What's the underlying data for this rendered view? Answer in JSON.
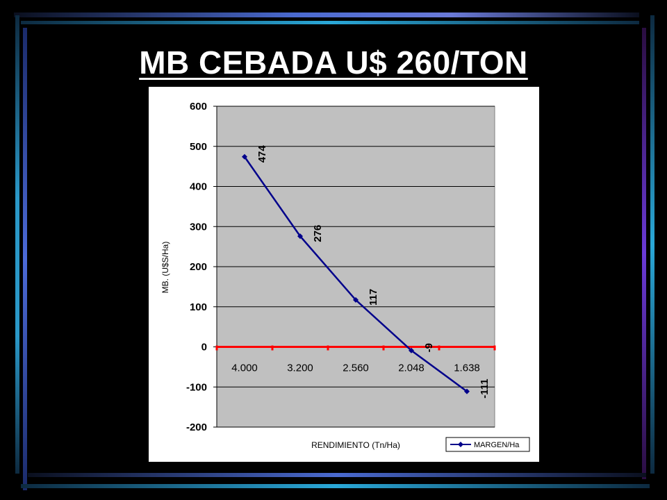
{
  "slide": {
    "title": "MB CEBADA U$ 260/TON"
  },
  "chart_data": {
    "type": "line",
    "categories": [
      "4.000",
      "3.200",
      "2.560",
      "2.048",
      "1.638"
    ],
    "series": [
      {
        "name": "MARGEN/Ha",
        "values": [
          474,
          276,
          117,
          -9,
          -111
        ],
        "color": "#00008B"
      }
    ],
    "data_labels": [
      "474",
      "276",
      "117",
      "-9",
      "-111"
    ],
    "xlabel": "RENDIMIENTO  (Tn/Ha)",
    "ylabel": "MB.  (U$S/Ha)",
    "ylim": [
      -200,
      600
    ],
    "yticks": [
      "600",
      "500",
      "400",
      "300",
      "200",
      "100",
      "0",
      "-100",
      "-200"
    ],
    "ytick_values": [
      600,
      500,
      400,
      300,
      200,
      100,
      0,
      -100,
      -200
    ],
    "zero_line_color": "#FF0000",
    "plot_background": "#C0C0C0",
    "grid": true,
    "legend_position": "bottom-right"
  }
}
